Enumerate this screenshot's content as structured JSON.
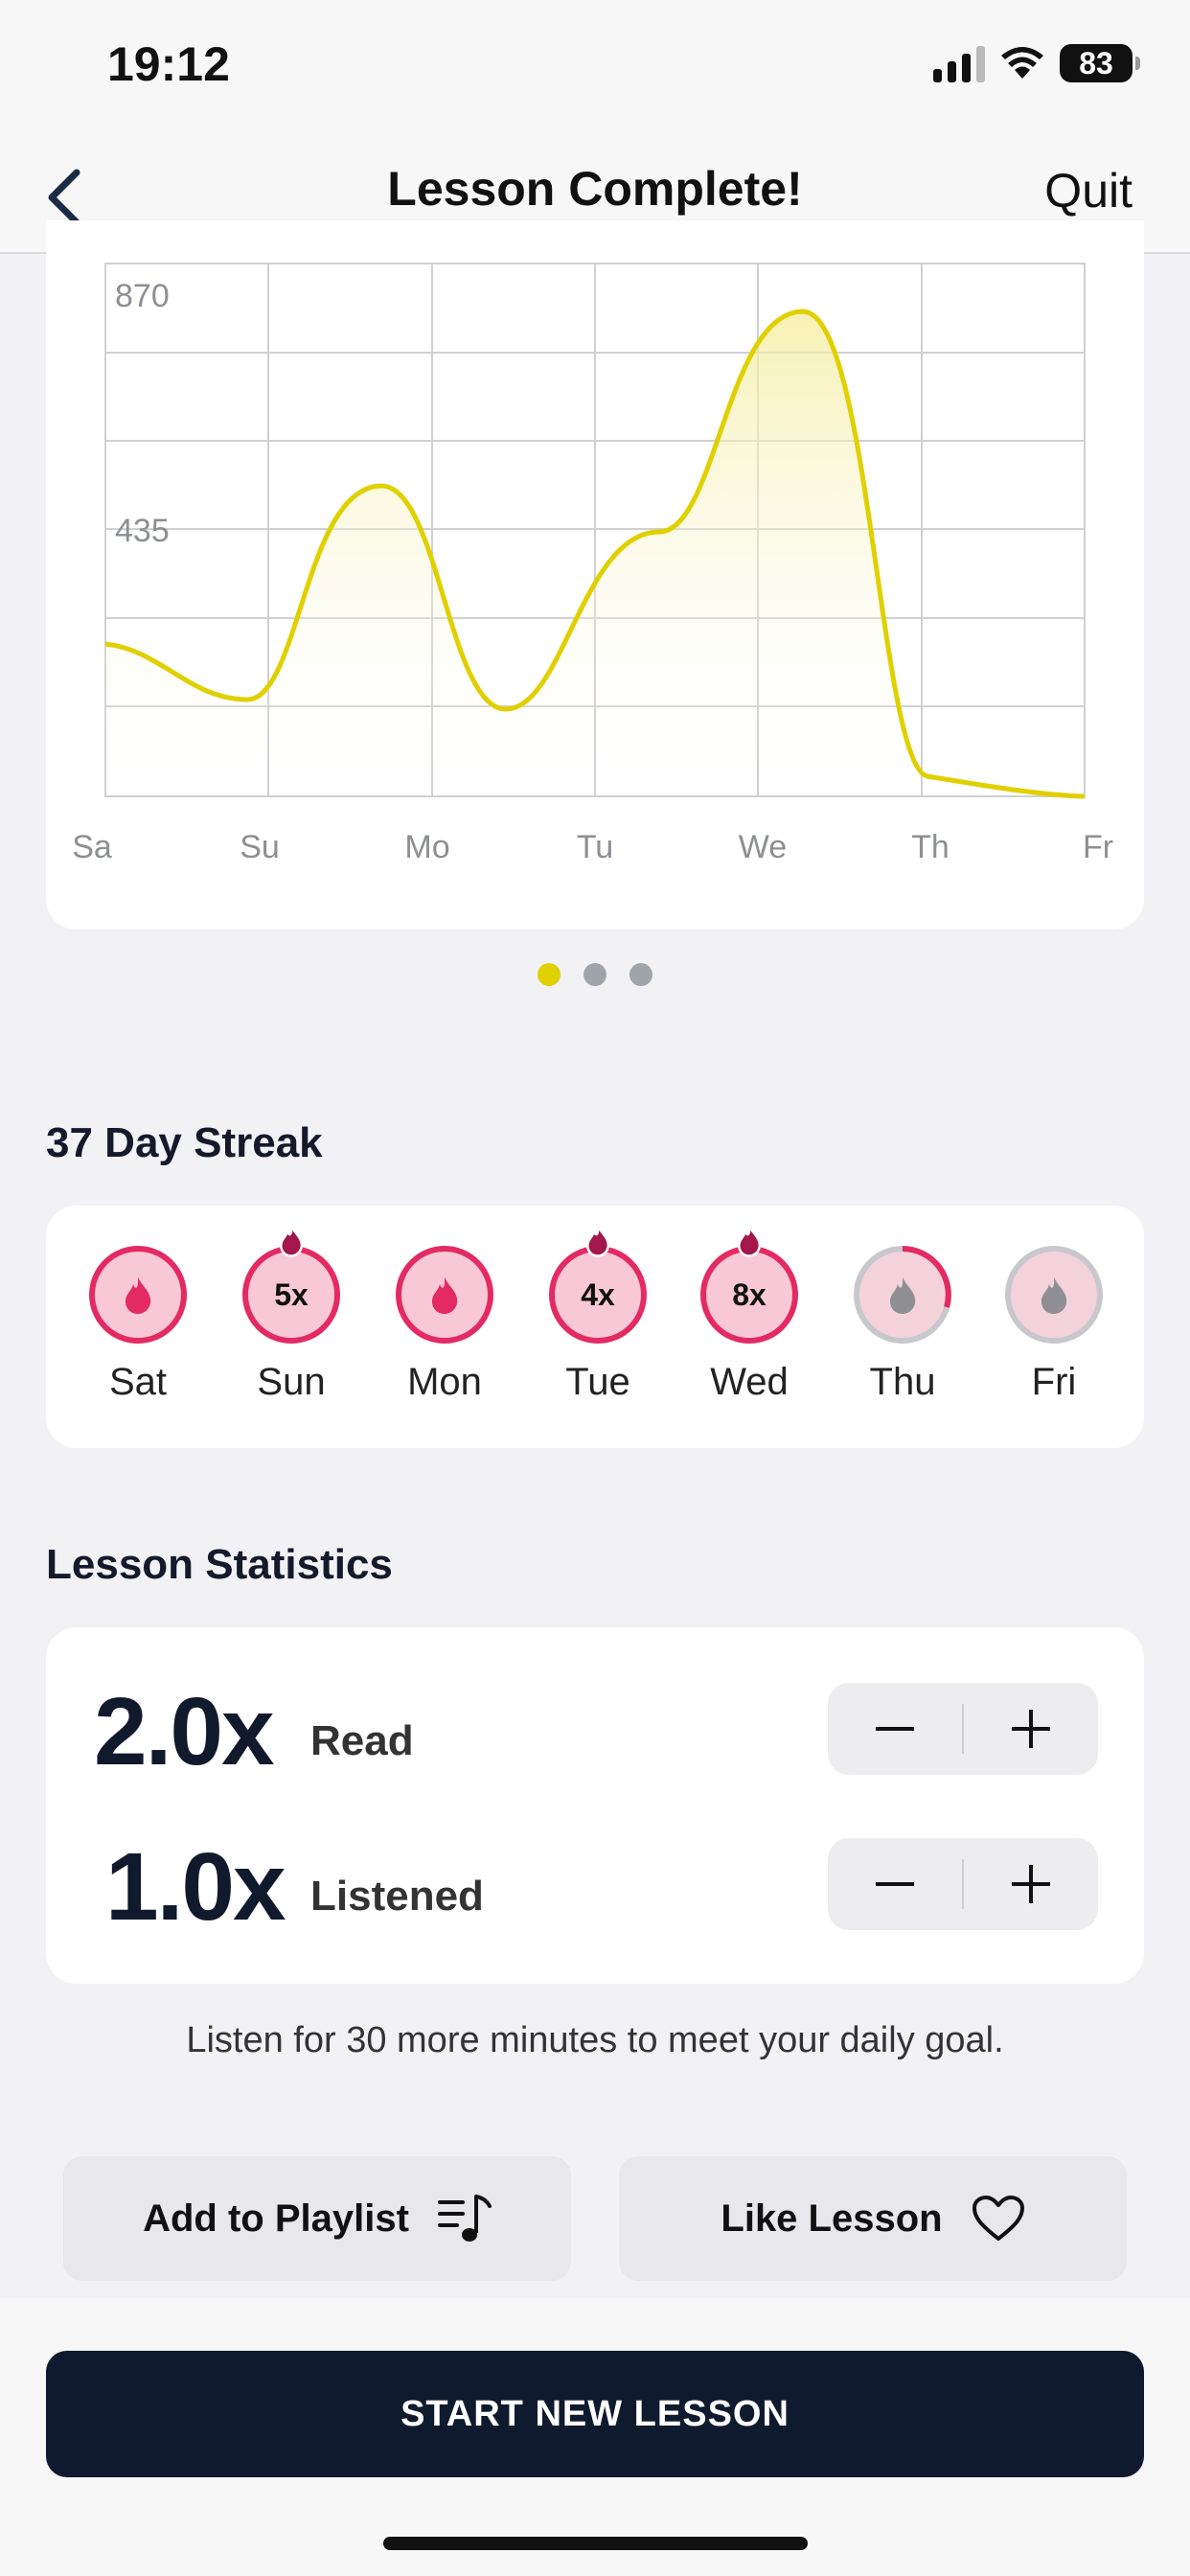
{
  "status_bar": {
    "time": "19:12",
    "battery": "83"
  },
  "nav": {
    "title": "Lesson Complete!",
    "quit_label": "Quit",
    "back_icon": "chevron-left-icon"
  },
  "chart": {
    "y_tick_top": "870",
    "y_tick_mid": "435",
    "x_labels": [
      "Sa",
      "Su",
      "Mo",
      "Tu",
      "We",
      "Th",
      "Fr"
    ],
    "line_color": "#e0d000"
  },
  "pager": {
    "count": 3,
    "active": 0
  },
  "streak": {
    "title": "37 Day Streak",
    "days": [
      {
        "label": "Sat",
        "count": "",
        "state": "done"
      },
      {
        "label": "Sun",
        "count": "5x",
        "state": "done"
      },
      {
        "label": "Mon",
        "count": "",
        "state": "done"
      },
      {
        "label": "Tue",
        "count": "4x",
        "state": "done"
      },
      {
        "label": "Wed",
        "count": "8x",
        "state": "done"
      },
      {
        "label": "Thu",
        "count": "",
        "state": "partial"
      },
      {
        "label": "Fri",
        "count": "",
        "state": "pending"
      }
    ]
  },
  "stats": {
    "title": "Lesson Statistics",
    "read_value": "2.0x",
    "read_label": "Read",
    "listened_value": "1.0x",
    "listened_label": "Listened",
    "minus": "−",
    "plus": "+"
  },
  "goal_text": "Listen for 30 more minutes to meet your daily goal.",
  "actions": {
    "playlist_label": "Add to Playlist",
    "like_label": "Like Lesson",
    "start_label": "START NEW LESSON"
  },
  "colors": {
    "accent": "#e0d000",
    "streak": "#e42a62",
    "primary": "#0f1a2e"
  }
}
